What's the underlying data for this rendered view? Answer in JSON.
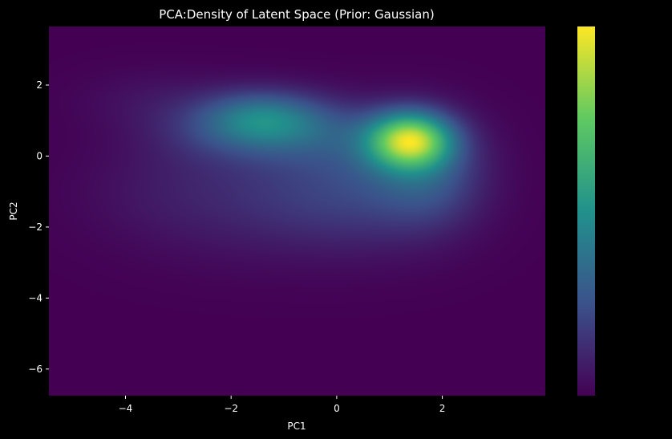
{
  "chart_data": {
    "type": "heatmap",
    "title": "PCA:Density of Latent Space (Prior: Gaussian)",
    "xlabel": "PC1",
    "ylabel": "PC2",
    "xlim": [
      -5.45,
      3.95
    ],
    "ylim": [
      -6.75,
      3.65
    ],
    "x_ticks": [
      -4,
      -2,
      0,
      2
    ],
    "y_ticks": [
      2,
      0,
      -2,
      -4,
      -6
    ],
    "x_tick_labels": [
      "−4",
      "−2",
      "0",
      "2"
    ],
    "y_tick_labels": [
      "2",
      "0",
      "−2",
      "−4",
      "−6"
    ],
    "colormap": "viridis",
    "colormap_stops": [
      "#440154",
      "#3b528b",
      "#21918c",
      "#5ec962",
      "#fde725"
    ],
    "background": "#000000",
    "colorbar": {
      "placement": "right",
      "tick_labels": []
    },
    "density_peaks": [
      {
        "x": 1.4,
        "y": 0.45,
        "sx": 0.55,
        "sy": 0.55,
        "w": 1.0
      },
      {
        "x": 1.4,
        "y": 0.1,
        "sx": 0.9,
        "sy": 0.9,
        "w": 0.22
      },
      {
        "x": 1.8,
        "y": -0.9,
        "sx": 0.7,
        "sy": 0.9,
        "w": 0.18
      },
      {
        "x": -1.4,
        "y": 1.05,
        "sx": 0.8,
        "sy": 0.55,
        "w": 0.44
      },
      {
        "x": -2.0,
        "y": 0.7,
        "sx": 1.1,
        "sy": 0.7,
        "w": 0.2
      },
      {
        "x": -0.2,
        "y": 0.6,
        "sx": 0.9,
        "sy": 0.7,
        "w": 0.2
      },
      {
        "x": -0.5,
        "y": -0.9,
        "sx": 1.4,
        "sy": 0.9,
        "w": 0.17
      },
      {
        "x": 0.7,
        "y": -1.6,
        "sx": 1.2,
        "sy": 1.0,
        "w": 0.1
      },
      {
        "x": -3.2,
        "y": -1.0,
        "sx": 1.2,
        "sy": 1.0,
        "w": 0.08
      },
      {
        "x": -3.5,
        "y": 1.6,
        "sx": 1.0,
        "sy": 0.6,
        "w": 0.06
      },
      {
        "x": -1.5,
        "y": -2.2,
        "sx": 1.5,
        "sy": 0.9,
        "w": 0.05
      }
    ]
  }
}
